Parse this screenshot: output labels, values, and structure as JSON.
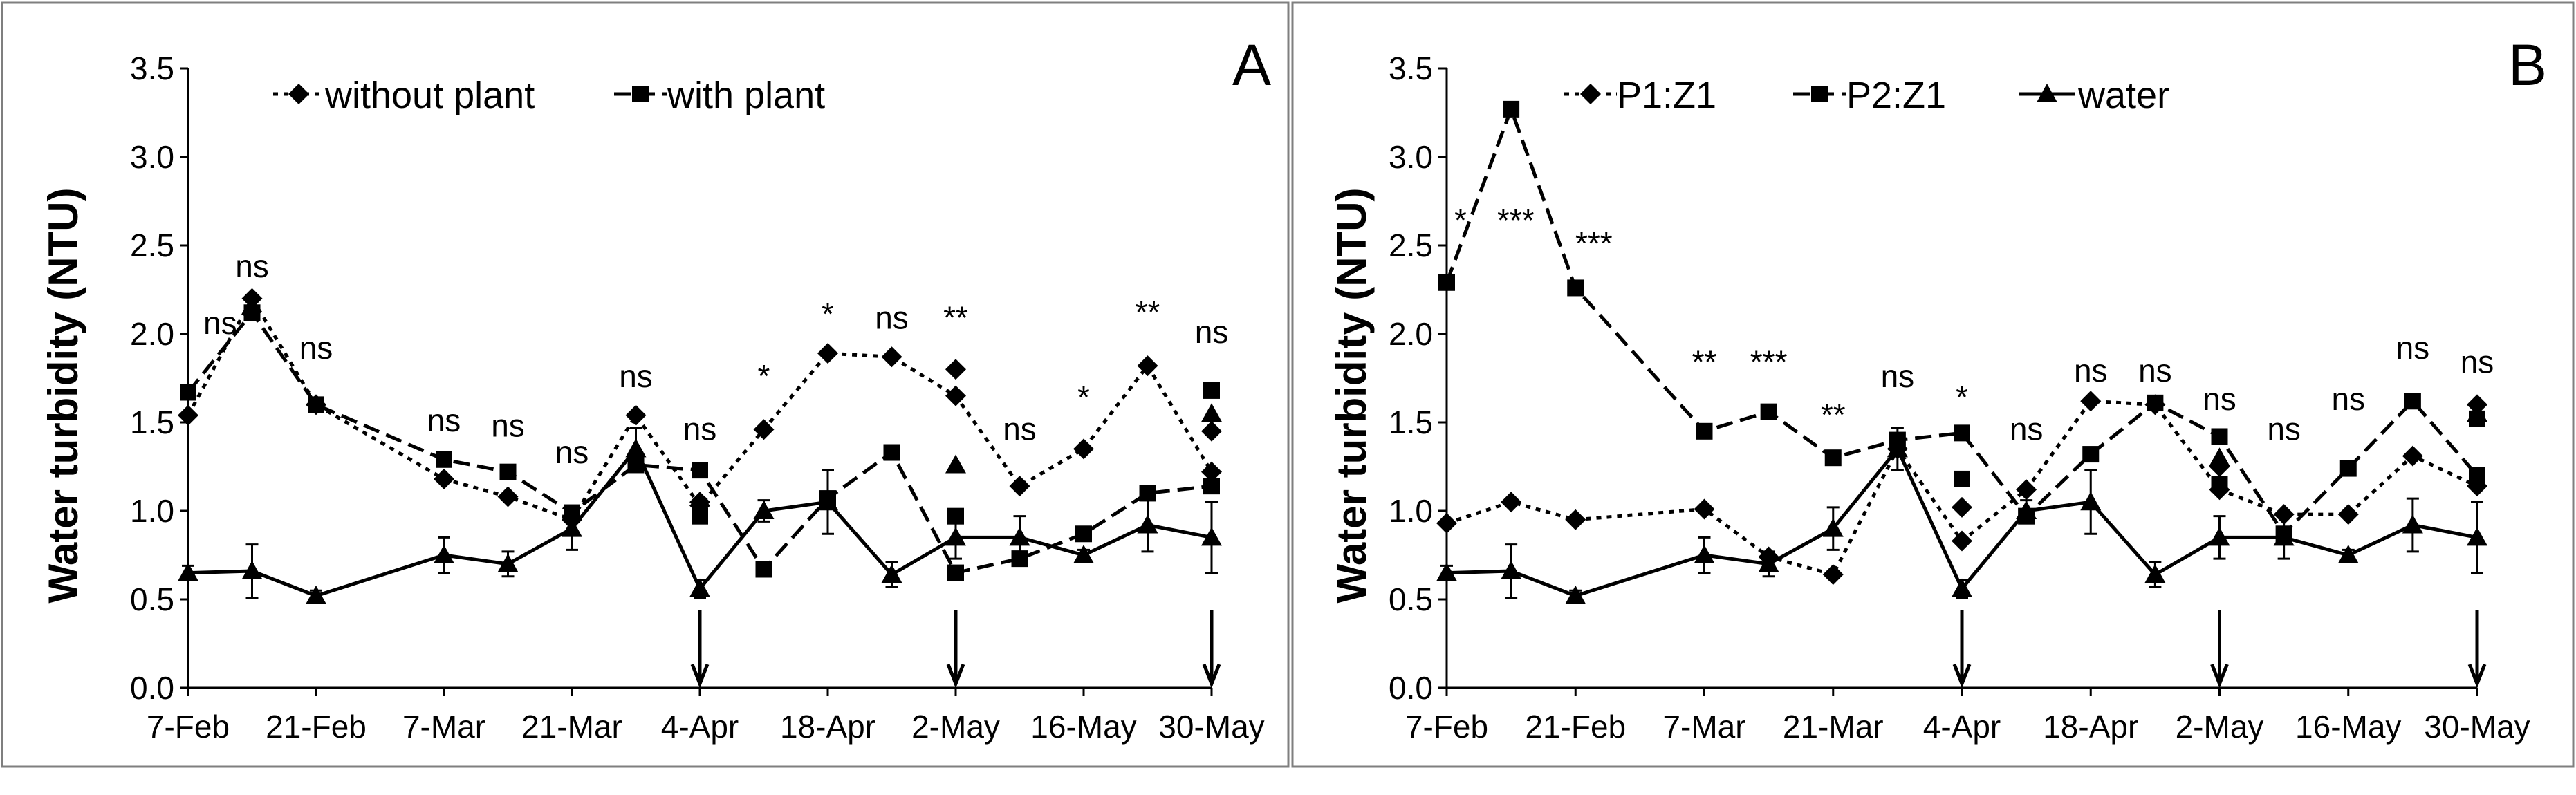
{
  "chart_data": [
    {
      "panel": "A",
      "type": "line",
      "ylabel": "Water turbidity (NTU)",
      "xlabel": "",
      "ylim": [
        0,
        3.5
      ],
      "ytick_labels": [
        "0.0",
        "0.5",
        "1.0",
        "1.5",
        "2.0",
        "2.5",
        "3.0",
        "3.5"
      ],
      "x_day_range": [
        0,
        112
      ],
      "xtick_labels": [
        "7-Feb",
        "21-Feb",
        "7-Mar",
        "21-Mar",
        "4-Apr",
        "18-Apr",
        "2-May",
        "16-May",
        "30-May"
      ],
      "xtick_days": [
        0,
        14,
        28,
        42,
        56,
        70,
        84,
        98,
        112
      ],
      "grid": false,
      "legend": {
        "position": "top-left",
        "entries": [
          "without plant",
          "with plant"
        ]
      },
      "series": [
        {
          "name": "without plant",
          "style": "dotted",
          "marker": "diamond",
          "x": [
            0,
            7,
            14,
            28,
            35,
            42,
            49,
            56,
            63,
            70,
            77,
            84,
            91,
            98,
            105,
            112
          ],
          "y": [
            1.54,
            2.2,
            1.6,
            1.18,
            1.08,
            0.95,
            1.54,
            1.03,
            1.46,
            1.89,
            1.87,
            1.65,
            1.14,
            1.35,
            1.82,
            1.22
          ]
        },
        {
          "name": "with plant",
          "style": "dashed",
          "marker": "square",
          "x": [
            0,
            7,
            14,
            28,
            35,
            42,
            49,
            56,
            63,
            70,
            77,
            84,
            91,
            98,
            105,
            112
          ],
          "y": [
            1.67,
            2.12,
            1.6,
            1.29,
            1.22,
            0.99,
            1.26,
            1.23,
            0.67,
            1.07,
            1.33,
            0.65,
            0.73,
            0.87,
            1.1,
            1.14
          ]
        },
        {
          "name": "water",
          "style": "solid",
          "marker": "triangle",
          "in_legend": false,
          "x": [
            0,
            7,
            14,
            28,
            35,
            42,
            49,
            56,
            63,
            70,
            77,
            84,
            91,
            98,
            105,
            112
          ],
          "y": [
            0.65,
            0.66,
            0.52,
            0.75,
            0.7,
            0.9,
            1.35,
            0.56,
            1.0,
            1.05,
            0.64,
            0.85,
            0.85,
            0.75,
            0.92,
            0.85
          ],
          "err": [
            0.04,
            0.15,
            0.03,
            0.1,
            0.07,
            0.12,
            0.12,
            0.05,
            0.06,
            0.18,
            0.07,
            0.12,
            0.12,
            0.03,
            0.15,
            0.2
          ]
        }
      ],
      "extra_points": [
        {
          "series": "without plant",
          "x": 56,
          "y": 1.05
        },
        {
          "series": "without plant",
          "x": 84,
          "y": 1.8
        },
        {
          "series": "without plant",
          "x": 112,
          "y": 1.45
        },
        {
          "series": "with plant",
          "x": 56,
          "y": 0.97
        },
        {
          "series": "with plant",
          "x": 84,
          "y": 0.97
        },
        {
          "series": "with plant",
          "x": 112,
          "y": 1.68
        },
        {
          "series": "water",
          "x": 84,
          "y": 1.26
        },
        {
          "series": "water",
          "x": 112,
          "y": 1.55
        }
      ],
      "annotations": [
        {
          "x": 3.5,
          "y": 2.0,
          "text": "ns"
        },
        {
          "x": 7,
          "y": 2.32,
          "text": "ns"
        },
        {
          "x": 14,
          "y": 1.86,
          "text": "ns"
        },
        {
          "x": 28,
          "y": 1.45,
          "text": "ns"
        },
        {
          "x": 35,
          "y": 1.42,
          "text": "ns"
        },
        {
          "x": 42,
          "y": 1.27,
          "text": "ns"
        },
        {
          "x": 49,
          "y": 1.7,
          "text": "ns"
        },
        {
          "x": 56,
          "y": 1.4,
          "text": "ns"
        },
        {
          "x": 63,
          "y": 1.7,
          "text": "*"
        },
        {
          "x": 70,
          "y": 2.05,
          "text": "*"
        },
        {
          "x": 77,
          "y": 2.03,
          "text": "ns"
        },
        {
          "x": 84,
          "y": 2.03,
          "text": "**"
        },
        {
          "x": 91,
          "y": 1.4,
          "text": "ns"
        },
        {
          "x": 98,
          "y": 1.58,
          "text": "*"
        },
        {
          "x": 105,
          "y": 2.06,
          "text": "**"
        },
        {
          "x": 112,
          "y": 1.95,
          "text": "ns"
        }
      ],
      "arrows_at": [
        56,
        84,
        112
      ]
    },
    {
      "panel": "B",
      "type": "line",
      "ylabel": "Water turbidity (NTU)",
      "xlabel": "",
      "ylim": [
        0,
        3.5
      ],
      "ytick_labels": [
        "0.0",
        "0.5",
        "1.0",
        "1.5",
        "2.0",
        "2.5",
        "3.0",
        "3.5"
      ],
      "x_day_range": [
        0,
        112
      ],
      "xtick_labels": [
        "7-Feb",
        "21-Feb",
        "7-Mar",
        "21-Mar",
        "4-Apr",
        "18-Apr",
        "2-May",
        "16-May",
        "30-May"
      ],
      "xtick_days": [
        0,
        14,
        28,
        42,
        56,
        70,
        84,
        98,
        112
      ],
      "grid": false,
      "legend": {
        "position": "top-left",
        "entries": [
          "P1:Z1",
          "P2:Z1",
          "water"
        ]
      },
      "series": [
        {
          "name": "P1:Z1",
          "style": "dotted",
          "marker": "diamond",
          "x": [
            0,
            7,
            14,
            28,
            35,
            42,
            49,
            56,
            63,
            70,
            77,
            84,
            91,
            98,
            105,
            112
          ],
          "y": [
            0.93,
            1.05,
            0.95,
            1.01,
            0.74,
            0.64,
            1.35,
            0.83,
            1.12,
            1.62,
            1.6,
            1.12,
            0.98,
            0.98,
            1.31,
            1.14
          ]
        },
        {
          "name": "P2:Z1",
          "style": "dashed",
          "marker": "square",
          "x": [
            0,
            7,
            14,
            28,
            35,
            42,
            49,
            56,
            63,
            70,
            77,
            84,
            91,
            98,
            105,
            112
          ],
          "y": [
            2.29,
            3.27,
            2.26,
            1.45,
            1.56,
            1.3,
            1.4,
            1.44,
            0.97,
            1.32,
            1.61,
            1.42,
            0.87,
            1.24,
            1.62,
            1.2
          ]
        },
        {
          "name": "water",
          "style": "solid",
          "marker": "triangle",
          "x": [
            0,
            7,
            14,
            28,
            35,
            42,
            49,
            56,
            63,
            70,
            77,
            84,
            91,
            98,
            105,
            112
          ],
          "y": [
            0.65,
            0.66,
            0.52,
            0.75,
            0.7,
            0.9,
            1.35,
            0.56,
            1.0,
            1.05,
            0.64,
            0.85,
            0.85,
            0.75,
            0.92,
            0.85
          ],
          "err": [
            0.04,
            0.15,
            0.03,
            0.1,
            0.07,
            0.12,
            0.12,
            0.05,
            0.06,
            0.18,
            0.07,
            0.12,
            0.12,
            0.03,
            0.15,
            0.2
          ]
        }
      ],
      "extra_points": [
        {
          "series": "P1:Z1",
          "x": 56,
          "y": 1.02
        },
        {
          "series": "P1:Z1",
          "x": 84,
          "y": 1.25
        },
        {
          "series": "P1:Z1",
          "x": 112,
          "y": 1.6
        },
        {
          "series": "P2:Z1",
          "x": 56,
          "y": 1.18
        },
        {
          "series": "P2:Z1",
          "x": 84,
          "y": 1.15
        },
        {
          "series": "P2:Z1",
          "x": 112,
          "y": 1.52
        },
        {
          "series": "water",
          "x": 84,
          "y": 1.3
        },
        {
          "series": "water",
          "x": 112,
          "y": 1.55
        }
      ],
      "annotations": [
        {
          "x": 1.5,
          "y": 2.58,
          "text": "*"
        },
        {
          "x": 7.5,
          "y": 2.58,
          "text": "***"
        },
        {
          "x": 16,
          "y": 2.45,
          "text": "***"
        },
        {
          "x": 28,
          "y": 1.78,
          "text": "**"
        },
        {
          "x": 35,
          "y": 1.78,
          "text": "***"
        },
        {
          "x": 42,
          "y": 1.48,
          "text": "**"
        },
        {
          "x": 49,
          "y": 1.7,
          "text": "ns"
        },
        {
          "x": 56,
          "y": 1.58,
          "text": "*"
        },
        {
          "x": 63,
          "y": 1.4,
          "text": "ns"
        },
        {
          "x": 70,
          "y": 1.73,
          "text": "ns"
        },
        {
          "x": 77,
          "y": 1.73,
          "text": "ns"
        },
        {
          "x": 84,
          "y": 1.57,
          "text": "ns"
        },
        {
          "x": 91,
          "y": 1.4,
          "text": "ns"
        },
        {
          "x": 98,
          "y": 1.57,
          "text": "ns"
        },
        {
          "x": 105,
          "y": 1.86,
          "text": "ns"
        },
        {
          "x": 112,
          "y": 1.78,
          "text": "ns"
        }
      ],
      "arrows_at": [
        56,
        84,
        112
      ]
    }
  ]
}
